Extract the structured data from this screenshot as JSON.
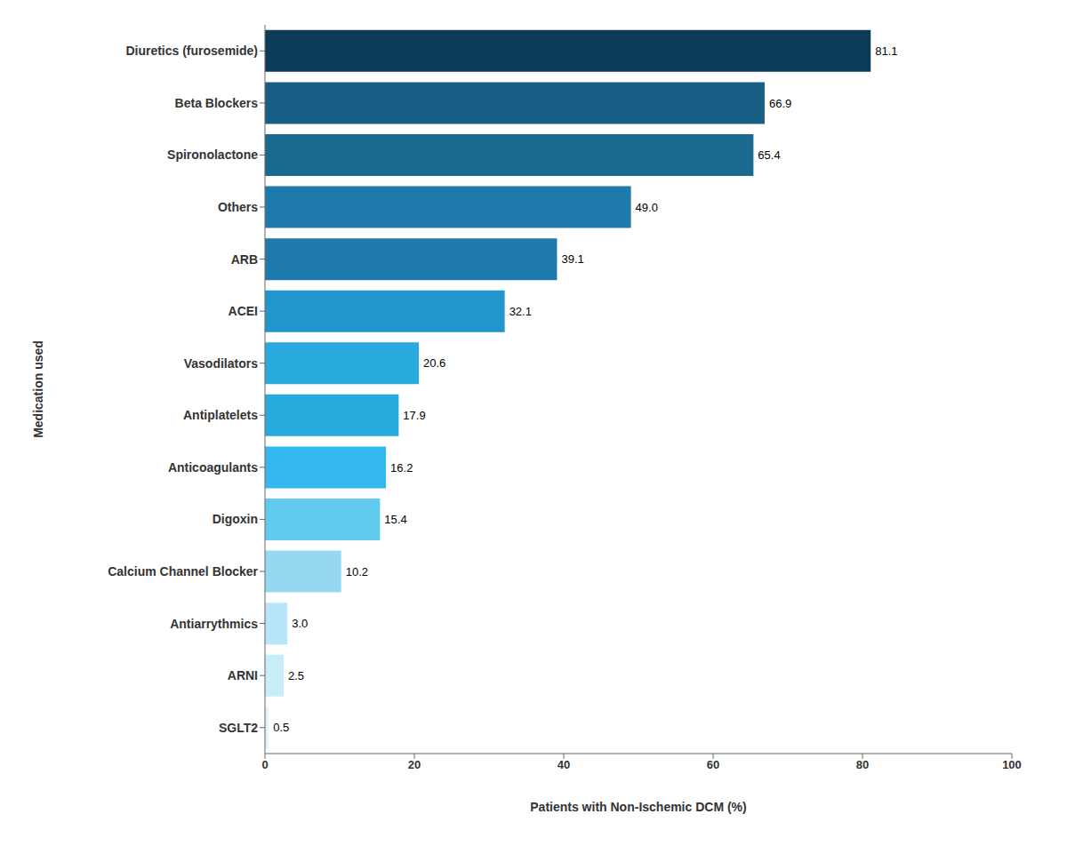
{
  "chart_data": {
    "type": "bar",
    "orientation": "horizontal",
    "categories": [
      "Diuretics (furosemide)",
      "Beta Blockers",
      "Spironolactone",
      "Others",
      "ARB",
      "ACEI",
      "Vasodilators",
      "Antiplatelets",
      "Anticoagulants",
      "Digoxin",
      "Calcium Channel Blocker",
      "Antiarrythmics",
      "ARNI",
      "SGLT2"
    ],
    "values": [
      81.1,
      66.9,
      65.4,
      49.0,
      39.1,
      32.1,
      20.6,
      17.9,
      16.2,
      15.4,
      10.2,
      3.0,
      2.5,
      0.5
    ],
    "value_labels": [
      "81.1",
      "66.9",
      "65.4",
      "49.0",
      "39.1",
      "32.1",
      "20.6",
      "17.9",
      "16.2",
      "15.4",
      "10.2",
      "3.0",
      "2.5",
      "0.5"
    ],
    "colors": [
      "#0c3c5a",
      "#175f85",
      "#1a6a90",
      "#1e7aaa",
      "#1e7aaa",
      "#2196cc",
      "#29aadf",
      "#29aadf",
      "#35b8ef",
      "#60caef",
      "#96d8f0",
      "#b8e6f8",
      "#c8ecfa",
      "#e0f5fe"
    ],
    "xlabel": "Patients with Non-Ischemic DCM (%)",
    "ylabel": "Medication used",
    "xlim": [
      0,
      100
    ],
    "xticks": [
      0,
      20,
      40,
      60,
      80,
      100
    ],
    "data_labels": true,
    "grid": false
  }
}
